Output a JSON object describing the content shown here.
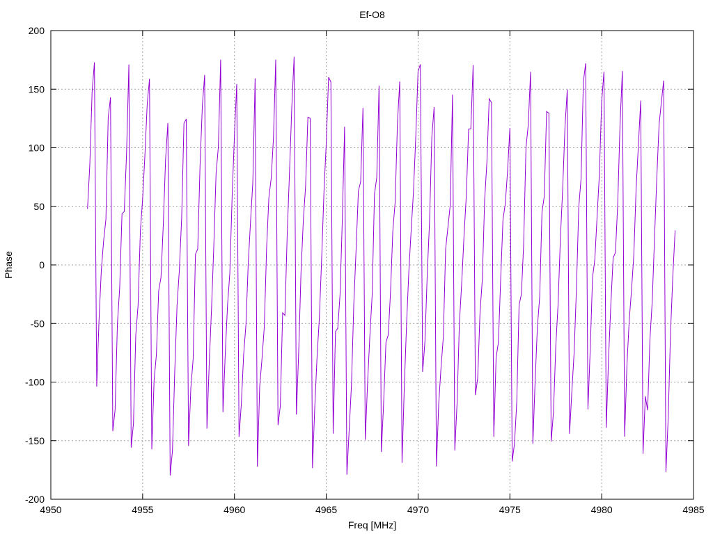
{
  "chart_data": {
    "type": "line",
    "title": "Ef-O8",
    "xlabel": "Freq [MHz]",
    "ylabel": "Phase",
    "xlim": [
      4950,
      4985
    ],
    "ylim": [
      -200,
      200
    ],
    "x_ticks": [
      4950,
      4955,
      4960,
      4965,
      4970,
      4975,
      4980,
      4985
    ],
    "y_ticks": [
      -200,
      -150,
      -100,
      -50,
      0,
      50,
      100,
      150,
      200
    ],
    "x_tick_labels": [
      "4950",
      "4955",
      "4960",
      "4965",
      "4970",
      "4975",
      "4980",
      "4985"
    ],
    "y_tick_labels": [
      "-200",
      "-150",
      "-100",
      "-50",
      "0",
      "50",
      "100",
      "150",
      "200"
    ],
    "grid": true,
    "series": [
      {
        "color": "#9400d3",
        "x_start": 4952.0,
        "x_end": 4984.0,
        "x_step": 0.125,
        "phase_start": 40,
        "phase_slope_deg_per_point": 45,
        "phase_wrap": [
          -180,
          180
        ]
      }
    ]
  }
}
